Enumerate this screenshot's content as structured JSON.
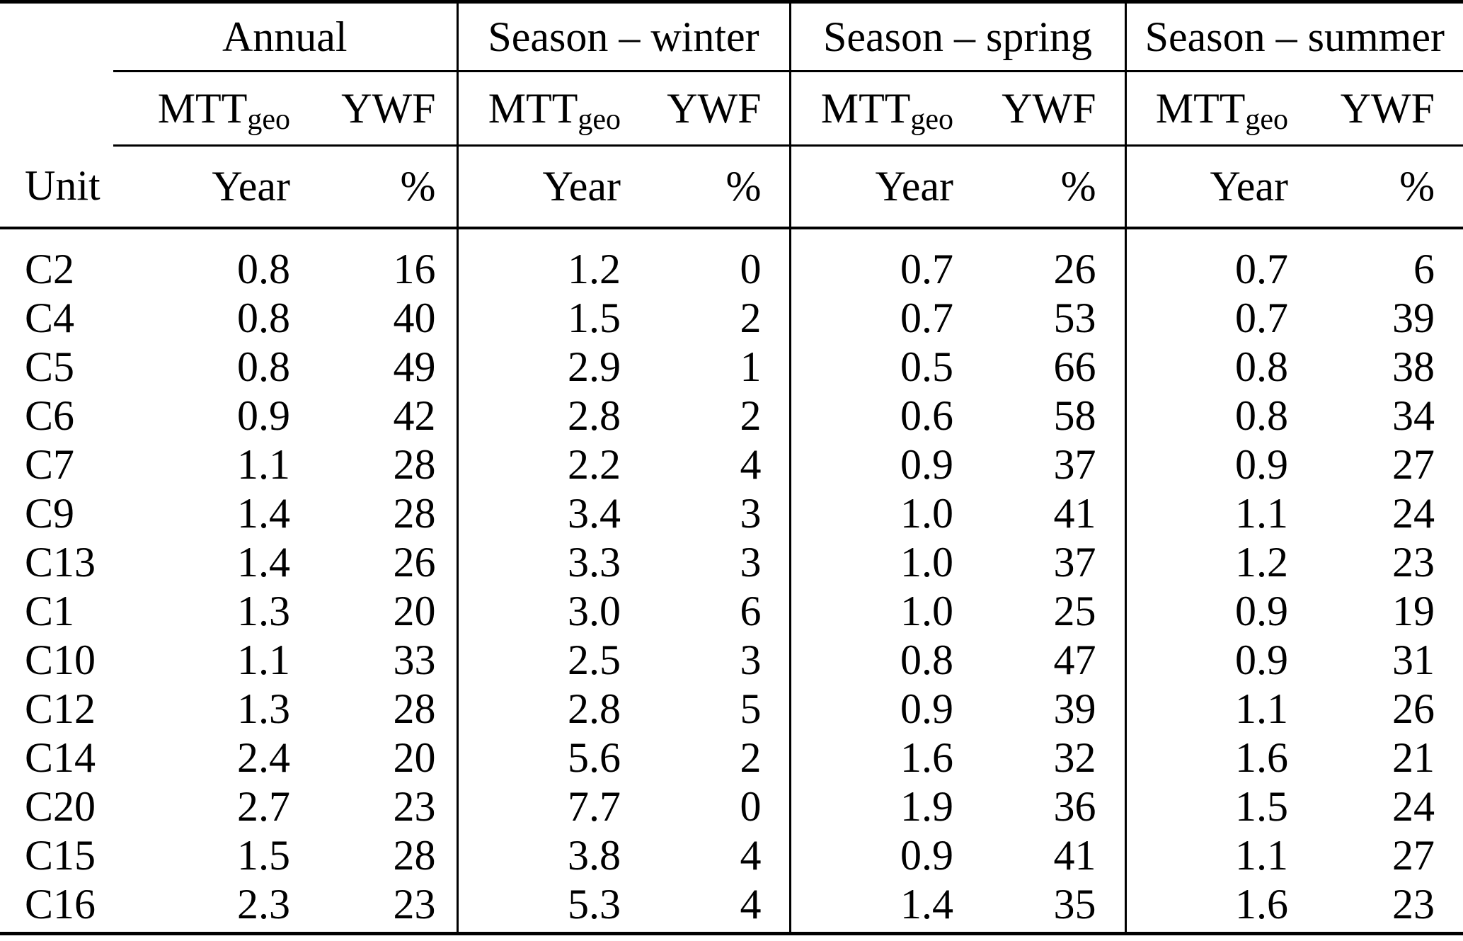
{
  "page": {
    "background_color": "#ffffff",
    "text_color": "#000000",
    "rule_color": "#000000"
  },
  "table": {
    "groups": [
      {
        "label": "Annual"
      },
      {
        "label": "Season – winter"
      },
      {
        "label": "Season – spring"
      },
      {
        "label": "Season – summer"
      }
    ],
    "metric_mtt": {
      "base": "MTT",
      "sub": "geo"
    },
    "metric_ywf": "YWF",
    "unit_header": "Unit",
    "subunit_year": "Year",
    "subunit_pct": "%",
    "rows": [
      {
        "unit": "C2",
        "annual": {
          "mtt_year": "0.8",
          "ywf_pct": "16"
        },
        "winter": {
          "mtt_year": "1.2",
          "ywf_pct": "0"
        },
        "spring": {
          "mtt_year": "0.7",
          "ywf_pct": "26"
        },
        "summer": {
          "mtt_year": "0.7",
          "ywf_pct": "6"
        }
      },
      {
        "unit": "C4",
        "annual": {
          "mtt_year": "0.8",
          "ywf_pct": "40"
        },
        "winter": {
          "mtt_year": "1.5",
          "ywf_pct": "2"
        },
        "spring": {
          "mtt_year": "0.7",
          "ywf_pct": "53"
        },
        "summer": {
          "mtt_year": "0.7",
          "ywf_pct": "39"
        }
      },
      {
        "unit": "C5",
        "annual": {
          "mtt_year": "0.8",
          "ywf_pct": "49"
        },
        "winter": {
          "mtt_year": "2.9",
          "ywf_pct": "1"
        },
        "spring": {
          "mtt_year": "0.5",
          "ywf_pct": "66"
        },
        "summer": {
          "mtt_year": "0.8",
          "ywf_pct": "38"
        }
      },
      {
        "unit": "C6",
        "annual": {
          "mtt_year": "0.9",
          "ywf_pct": "42"
        },
        "winter": {
          "mtt_year": "2.8",
          "ywf_pct": "2"
        },
        "spring": {
          "mtt_year": "0.6",
          "ywf_pct": "58"
        },
        "summer": {
          "mtt_year": "0.8",
          "ywf_pct": "34"
        }
      },
      {
        "unit": "C7",
        "annual": {
          "mtt_year": "1.1",
          "ywf_pct": "28"
        },
        "winter": {
          "mtt_year": "2.2",
          "ywf_pct": "4"
        },
        "spring": {
          "mtt_year": "0.9",
          "ywf_pct": "37"
        },
        "summer": {
          "mtt_year": "0.9",
          "ywf_pct": "27"
        }
      },
      {
        "unit": "C9",
        "annual": {
          "mtt_year": "1.4",
          "ywf_pct": "28"
        },
        "winter": {
          "mtt_year": "3.4",
          "ywf_pct": "3"
        },
        "spring": {
          "mtt_year": "1.0",
          "ywf_pct": "41"
        },
        "summer": {
          "mtt_year": "1.1",
          "ywf_pct": "24"
        }
      },
      {
        "unit": "C13",
        "annual": {
          "mtt_year": "1.4",
          "ywf_pct": "26"
        },
        "winter": {
          "mtt_year": "3.3",
          "ywf_pct": "3"
        },
        "spring": {
          "mtt_year": "1.0",
          "ywf_pct": "37"
        },
        "summer": {
          "mtt_year": "1.2",
          "ywf_pct": "23"
        }
      },
      {
        "unit": "C1",
        "annual": {
          "mtt_year": "1.3",
          "ywf_pct": "20"
        },
        "winter": {
          "mtt_year": "3.0",
          "ywf_pct": "6"
        },
        "spring": {
          "mtt_year": "1.0",
          "ywf_pct": "25"
        },
        "summer": {
          "mtt_year": "0.9",
          "ywf_pct": "19"
        }
      },
      {
        "unit": "C10",
        "annual": {
          "mtt_year": "1.1",
          "ywf_pct": "33"
        },
        "winter": {
          "mtt_year": "2.5",
          "ywf_pct": "3"
        },
        "spring": {
          "mtt_year": "0.8",
          "ywf_pct": "47"
        },
        "summer": {
          "mtt_year": "0.9",
          "ywf_pct": "31"
        }
      },
      {
        "unit": "C12",
        "annual": {
          "mtt_year": "1.3",
          "ywf_pct": "28"
        },
        "winter": {
          "mtt_year": "2.8",
          "ywf_pct": "5"
        },
        "spring": {
          "mtt_year": "0.9",
          "ywf_pct": "39"
        },
        "summer": {
          "mtt_year": "1.1",
          "ywf_pct": "26"
        }
      },
      {
        "unit": "C14",
        "annual": {
          "mtt_year": "2.4",
          "ywf_pct": "20"
        },
        "winter": {
          "mtt_year": "5.6",
          "ywf_pct": "2"
        },
        "spring": {
          "mtt_year": "1.6",
          "ywf_pct": "32"
        },
        "summer": {
          "mtt_year": "1.6",
          "ywf_pct": "21"
        }
      },
      {
        "unit": "C20",
        "annual": {
          "mtt_year": "2.7",
          "ywf_pct": "23"
        },
        "winter": {
          "mtt_year": "7.7",
          "ywf_pct": "0"
        },
        "spring": {
          "mtt_year": "1.9",
          "ywf_pct": "36"
        },
        "summer": {
          "mtt_year": "1.5",
          "ywf_pct": "24"
        }
      },
      {
        "unit": "C15",
        "annual": {
          "mtt_year": "1.5",
          "ywf_pct": "28"
        },
        "winter": {
          "mtt_year": "3.8",
          "ywf_pct": "4"
        },
        "spring": {
          "mtt_year": "0.9",
          "ywf_pct": "41"
        },
        "summer": {
          "mtt_year": "1.1",
          "ywf_pct": "27"
        }
      },
      {
        "unit": "C16",
        "annual": {
          "mtt_year": "2.3",
          "ywf_pct": "23"
        },
        "winter": {
          "mtt_year": "5.3",
          "ywf_pct": "4"
        },
        "spring": {
          "mtt_year": "1.4",
          "ywf_pct": "35"
        },
        "summer": {
          "mtt_year": "1.6",
          "ywf_pct": "23"
        }
      }
    ]
  }
}
